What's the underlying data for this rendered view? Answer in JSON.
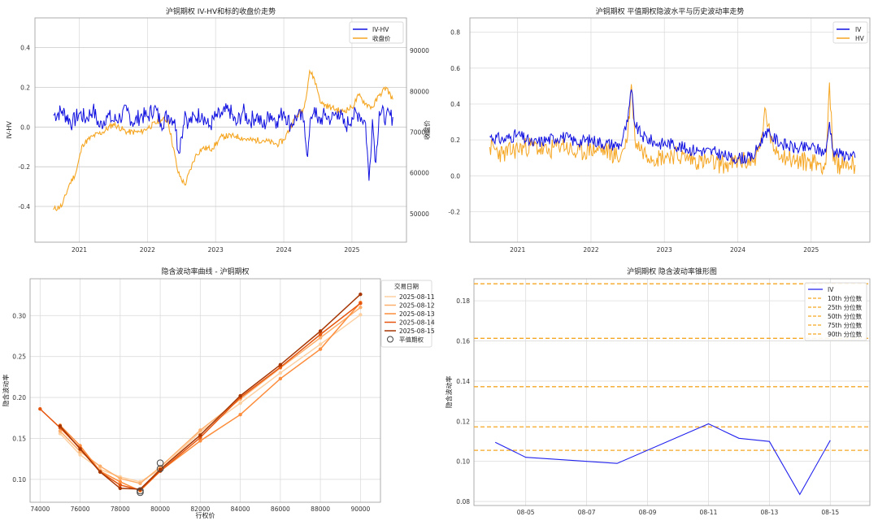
{
  "chart_data": [
    {
      "type": "line",
      "title": "沪铜期权 IV-HV和标的收盘价走势",
      "ylabel": "IV-HV",
      "y2label": "收盘价",
      "ylim": [
        -0.58,
        0.55
      ],
      "y2lim": [
        43000,
        98000
      ],
      "yticks": [
        -0.4,
        -0.2,
        0.0,
        0.2,
        0.4
      ],
      "y2ticks": [
        50000,
        60000,
        70000,
        80000,
        90000
      ],
      "xticks": [
        "2021",
        "2022",
        "2023",
        "2024",
        "2025"
      ],
      "hlines": [
        -0.4,
        -0.2,
        0.0,
        0.2,
        0.4
      ],
      "legend_position": "top-right",
      "series": [
        {
          "name": "IV-HV",
          "axis": "left",
          "color": "#1010e0",
          "x": [
            2020.62,
            2020.75,
            2020.9,
            2021.0,
            2021.1,
            2021.2,
            2021.3,
            2021.4,
            2021.5,
            2021.6,
            2021.7,
            2021.8,
            2021.9,
            2022.0,
            2022.1,
            2022.2,
            2022.3,
            2022.4,
            2022.45,
            2022.5,
            2022.55,
            2022.6,
            2022.7,
            2022.8,
            2022.9,
            2023.0,
            2023.1,
            2023.2,
            2023.3,
            2023.4,
            2023.5,
            2023.6,
            2023.7,
            2023.8,
            2023.9,
            2024.0,
            2024.1,
            2024.2,
            2024.3,
            2024.35,
            2024.4,
            2024.45,
            2024.5,
            2024.6,
            2024.7,
            2024.8,
            2024.9,
            2025.0,
            2025.1,
            2025.2,
            2025.25,
            2025.3,
            2025.35,
            2025.4,
            2025.5,
            2025.6
          ],
          "values": [
            0.06,
            0.08,
            0.02,
            0.07,
            0.04,
            0.09,
            0.0,
            0.06,
            0.03,
            0.05,
            0.08,
            0.02,
            0.06,
            0.05,
            0.1,
            0.02,
            0.06,
            0.04,
            -0.12,
            -0.05,
            0.08,
            0.02,
            0.05,
            0.07,
            0.0,
            0.05,
            0.06,
            0.09,
            0.01,
            0.08,
            0.03,
            0.06,
            0.0,
            0.07,
            0.03,
            0.08,
            0.01,
            0.06,
            0.03,
            -0.15,
            0.05,
            0.1,
            0.02,
            0.06,
            0.04,
            0.08,
            0.0,
            0.05,
            0.07,
            0.02,
            -0.27,
            0.04,
            -0.18,
            0.08,
            0.05,
            0.05
          ]
        },
        {
          "name": "收盘价",
          "axis": "right",
          "color": "#f5a623",
          "x": [
            2020.62,
            2020.75,
            2020.85,
            2020.95,
            2021.05,
            2021.2,
            2021.35,
            2021.5,
            2021.7,
            2021.9,
            2022.0,
            2022.2,
            2022.3,
            2022.45,
            2022.55,
            2022.7,
            2022.8,
            2022.95,
            2023.1,
            2023.3,
            2023.5,
            2023.7,
            2023.9,
            2024.0,
            2024.15,
            2024.3,
            2024.38,
            2024.45,
            2024.55,
            2024.7,
            2024.85,
            2025.0,
            2025.1,
            2025.2,
            2025.3,
            2025.4,
            2025.5,
            2025.6
          ],
          "values": [
            51000,
            52000,
            57000,
            60000,
            67000,
            69000,
            70000,
            72000,
            70000,
            70000,
            71000,
            73000,
            73000,
            60000,
            57000,
            64000,
            66000,
            66000,
            69000,
            69000,
            68000,
            68000,
            67000,
            68000,
            73000,
            76000,
            85000,
            83000,
            77000,
            76000,
            75000,
            76000,
            79000,
            77000,
            76000,
            79000,
            81000,
            78000
          ]
        }
      ]
    },
    {
      "type": "line",
      "title": "沪铜期权 平值期权隐波水平与历史波动率走势",
      "ylim": [
        -0.37,
        0.88
      ],
      "yticks": [
        -0.2,
        0.0,
        0.2,
        0.4,
        0.6,
        0.8
      ],
      "xticks": [
        "2021",
        "2022",
        "2023",
        "2024",
        "2025"
      ],
      "legend_position": "top-right",
      "series": [
        {
          "name": "IV",
          "color": "#1010e0",
          "x": [
            2020.62,
            2020.8,
            2021.0,
            2021.2,
            2021.4,
            2021.6,
            2021.8,
            2022.0,
            2022.2,
            2022.4,
            2022.5,
            2022.55,
            2022.6,
            2022.7,
            2022.9,
            2023.1,
            2023.3,
            2023.5,
            2023.7,
            2023.9,
            2024.0,
            2024.2,
            2024.3,
            2024.38,
            2024.45,
            2024.6,
            2024.8,
            2025.0,
            2025.2,
            2025.25,
            2025.3,
            2025.4,
            2025.5,
            2025.6
          ],
          "values": [
            0.22,
            0.2,
            0.23,
            0.18,
            0.2,
            0.22,
            0.19,
            0.2,
            0.18,
            0.17,
            0.3,
            0.48,
            0.28,
            0.22,
            0.18,
            0.18,
            0.15,
            0.14,
            0.13,
            0.1,
            0.1,
            0.1,
            0.18,
            0.25,
            0.22,
            0.18,
            0.15,
            0.16,
            0.13,
            0.3,
            0.14,
            0.12,
            0.12,
            0.1
          ]
        },
        {
          "name": "HV",
          "color": "#f5a623",
          "x": [
            2020.62,
            2020.8,
            2021.0,
            2021.2,
            2021.4,
            2021.6,
            2021.8,
            2022.0,
            2022.2,
            2022.4,
            2022.5,
            2022.55,
            2022.6,
            2022.7,
            2022.9,
            2023.1,
            2023.3,
            2023.5,
            2023.7,
            2023.9,
            2024.0,
            2024.2,
            2024.3,
            2024.38,
            2024.45,
            2024.6,
            2024.8,
            2025.0,
            2025.2,
            2025.25,
            2025.3,
            2025.4,
            2025.5,
            2025.6
          ],
          "values": [
            0.16,
            0.12,
            0.15,
            0.17,
            0.13,
            0.18,
            0.12,
            0.15,
            0.14,
            0.1,
            0.22,
            0.51,
            0.2,
            0.14,
            0.1,
            0.12,
            0.1,
            0.08,
            0.07,
            0.06,
            0.08,
            0.08,
            0.15,
            0.37,
            0.18,
            0.12,
            0.08,
            0.08,
            0.06,
            0.52,
            0.08,
            0.06,
            0.07,
            0.06
          ]
        }
      ]
    },
    {
      "type": "line",
      "title": "隐含波动率曲线 - 沪铜期权",
      "xlabel": "行权价",
      "ylabel": "隐含波动率",
      "xlim": [
        73500,
        91000
      ],
      "ylim": [
        0.072,
        0.345
      ],
      "xticks": [
        74000,
        76000,
        78000,
        80000,
        82000,
        84000,
        86000,
        88000,
        90000
      ],
      "yticks": [
        0.1,
        0.15,
        0.2,
        0.25,
        0.3
      ],
      "legend_title": "交易日期",
      "legend_position": "top-right",
      "x": [
        74000,
        75000,
        76000,
        77000,
        78000,
        79000,
        80000,
        82000,
        84000,
        86000,
        88000,
        90000
      ],
      "series": [
        {
          "name": "2025-08-11",
          "color": "#fdd0a2",
          "values": [
            null,
            0.156,
            0.13,
            0.112,
            0.103,
            0.097,
            0.112,
            0.158,
            0.193,
            0.23,
            0.265,
            0.301
          ]
        },
        {
          "name": "2025-08-12",
          "color": "#fdae6b",
          "values": [
            null,
            0.159,
            0.134,
            0.116,
            0.101,
            0.095,
            0.115,
            0.16,
            0.198,
            0.236,
            0.273,
            0.31
          ]
        },
        {
          "name": "2025-08-13",
          "color": "#fd8d3c",
          "values": [
            null,
            0.166,
            0.141,
            0.11,
            0.097,
            0.086,
            0.11,
            0.147,
            0.179,
            0.223,
            0.259,
            0.316
          ]
        },
        {
          "name": "2025-08-14",
          "color": "#e6550d",
          "values": [
            0.186,
            0.163,
            0.138,
            0.109,
            0.093,
            0.087,
            0.11,
            0.151,
            0.2,
            0.237,
            0.277,
            0.315
          ]
        },
        {
          "name": "2025-08-15",
          "color": "#a63603",
          "values": [
            null,
            0.165,
            0.137,
            0.109,
            0.089,
            0.088,
            0.112,
            0.154,
            0.202,
            0.24,
            0.281,
            0.326
          ]
        }
      ],
      "atm": {
        "name": "平值期权",
        "x": [
          79000,
          79000,
          80000,
          80000
        ],
        "values": [
          0.084,
          0.086,
          0.113,
          0.12
        ]
      }
    },
    {
      "type": "line",
      "title": "沪铜期权 隐含波动率锥形图",
      "ylabel": "隐含波动率",
      "xlim": [
        -0.7,
        12.3
      ],
      "ylim": [
        0.078,
        0.191
      ],
      "yticks": [
        0.08,
        0.1,
        0.12,
        0.14,
        0.16,
        0.18
      ],
      "xtick_pos": [
        1,
        3,
        5,
        7,
        9,
        11
      ],
      "xticks": [
        "08-05",
        "08-07",
        "08-09",
        "08-11",
        "08-13",
        "08-15"
      ],
      "legend_position": "top-right",
      "series": [
        {
          "name": "IV",
          "color": "#2222ee",
          "x": [
            0,
            1,
            4,
            7,
            8,
            9,
            10,
            11
          ],
          "values": [
            0.1095,
            0.102,
            0.099,
            0.1187,
            0.1115,
            0.1099,
            0.0835,
            0.1105
          ]
        }
      ],
      "percentiles": [
        {
          "name": "10th 分位数",
          "value": 0.1055
        },
        {
          "name": "25th 分位数",
          "value": 0.1172
        },
        {
          "name": "50th 分位数",
          "value": 0.1372
        },
        {
          "name": "75th 分位数",
          "value": 0.1613
        },
        {
          "name": "90th 分位数",
          "value": 0.1885
        }
      ],
      "percentile_color": "#f5a623"
    }
  ]
}
